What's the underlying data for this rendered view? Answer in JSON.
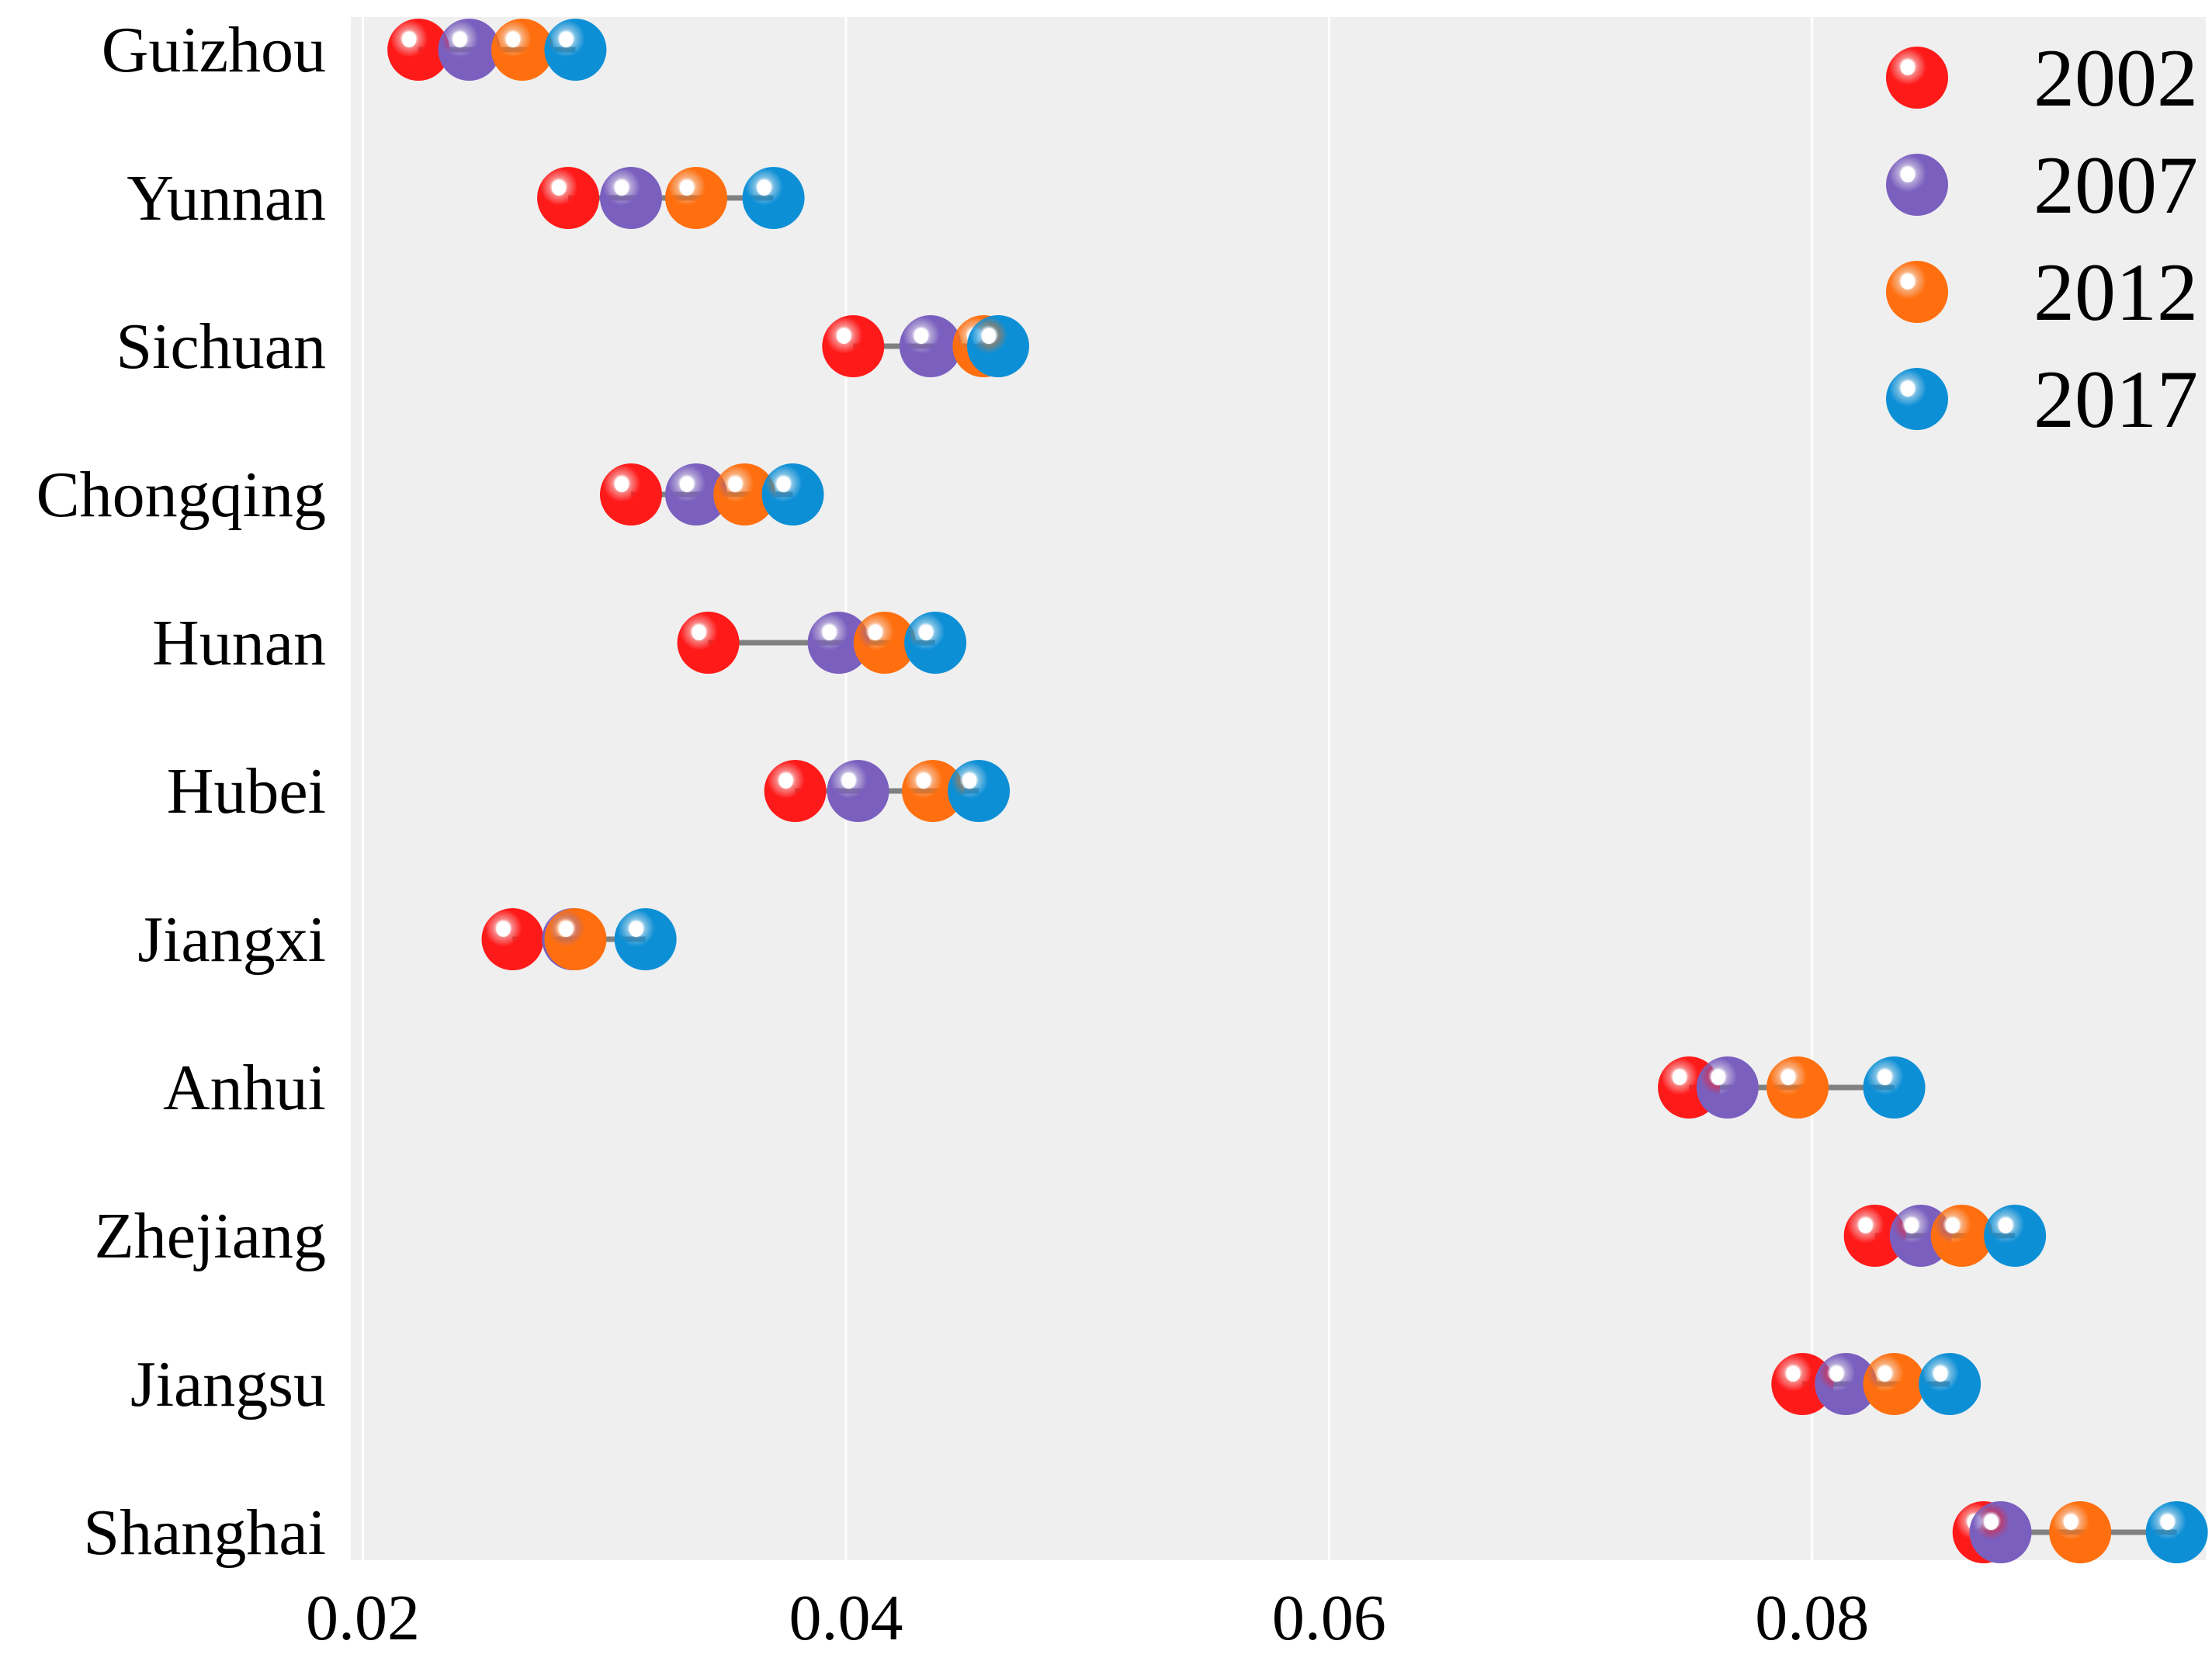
{
  "chart_data": {
    "type": "dumbbell",
    "title": "",
    "xlabel": "",
    "ylabel": "",
    "xlim": [
      0.0195,
      0.0963
    ],
    "xticks": [
      0.02,
      0.04,
      0.06,
      0.08
    ],
    "xtick_labels": [
      "0.02",
      "0.04",
      "0.06",
      "0.08"
    ],
    "grid": true,
    "legend_position": "top-right",
    "categories": [
      "Guizhou",
      "Yunnan",
      "Sichuan",
      "Chongqing",
      "Hunan",
      "Hubei",
      "Jiangxi",
      "Anhui",
      "Zhejiang",
      "Jiangsu",
      "Shanghai"
    ],
    "series": [
      {
        "name": "2002",
        "color": "#ff1a1a",
        "values": [
          0.0223,
          0.0285,
          0.0403,
          0.0311,
          0.0343,
          0.0379,
          0.0262,
          0.0749,
          0.0826,
          0.0796,
          0.0871
        ]
      },
      {
        "name": "2007",
        "color": "#7a5fbf",
        "values": [
          0.0244,
          0.0311,
          0.0435,
          0.0338,
          0.0397,
          0.0405,
          0.0287,
          0.0765,
          0.0845,
          0.0814,
          0.0878
        ]
      },
      {
        "name": "2012",
        "color": "#ff6f0f",
        "values": [
          0.0266,
          0.0338,
          0.0457,
          0.0358,
          0.0416,
          0.0436,
          0.0288,
          0.0794,
          0.0862,
          0.0834,
          0.0911
        ]
      },
      {
        "name": "2017",
        "color": "#0d8fd6",
        "values": [
          0.0288,
          0.037,
          0.0463,
          0.0378,
          0.0437,
          0.0455,
          0.0317,
          0.0834,
          0.0884,
          0.0857,
          0.0951
        ]
      }
    ],
    "connector_color": "#808080",
    "panel_background": "#efefef",
    "grid_color": "#ffffff"
  }
}
